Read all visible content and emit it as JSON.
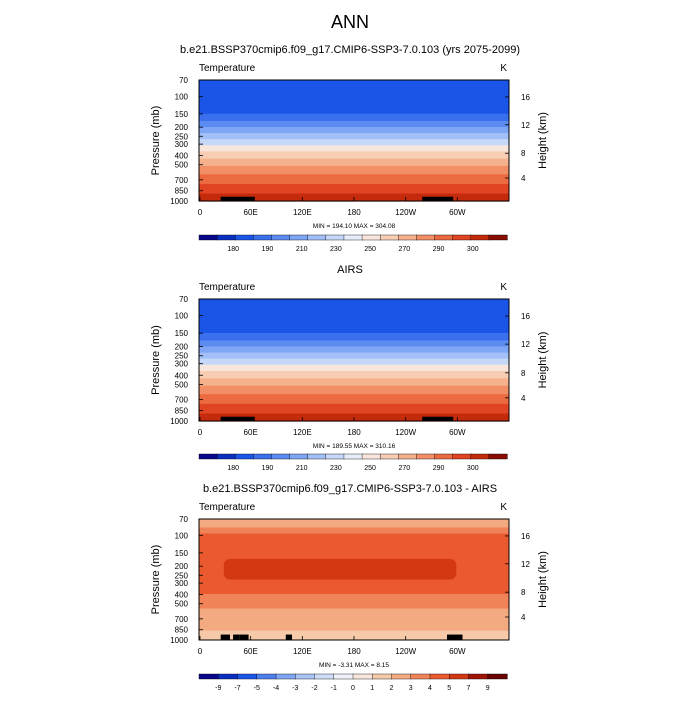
{
  "page_title": "ANN",
  "chart_data": [
    {
      "type": "heatmap",
      "title": "b.e21.BSSP370cmip6.f09_g17.CMIP6-SSP3-7.0.103 (yrs 2075-2099)",
      "left_label": "Temperature",
      "units": "K",
      "ylabel": "Pressure (mb)",
      "y2label": "Height (km)",
      "xticks": [
        "0",
        "60E",
        "120E",
        "180",
        "120W",
        "60W"
      ],
      "yticks": [
        "70",
        "100",
        "150",
        "200",
        "250",
        "300",
        "400",
        "500",
        "700",
        "850",
        "1000"
      ],
      "y2ticks": [
        "16",
        "12",
        "8",
        "4"
      ],
      "minmax": "MIN = 194.10   MAX = 304.08",
      "colorbar": [
        "180",
        "190",
        "210",
        "230",
        "250",
        "270",
        "290",
        "300"
      ],
      "min": 194.1,
      "max": 304.08
    },
    {
      "type": "heatmap",
      "title": "AIRS",
      "left_label": "Temperature",
      "units": "K",
      "ylabel": "Pressure (mb)",
      "y2label": "Height (km)",
      "xticks": [
        "0",
        "60E",
        "120E",
        "180",
        "120W",
        "60W"
      ],
      "yticks": [
        "70",
        "100",
        "150",
        "200",
        "250",
        "300",
        "400",
        "500",
        "700",
        "850",
        "1000"
      ],
      "y2ticks": [
        "16",
        "12",
        "8",
        "4"
      ],
      "minmax": "MIN = 189.55   MAX = 310.16",
      "colorbar": [
        "180",
        "190",
        "210",
        "230",
        "250",
        "270",
        "290",
        "300"
      ],
      "min": 189.55,
      "max": 310.16
    },
    {
      "type": "heatmap",
      "title": "b.e21.BSSP370cmip6.f09_g17.CMIP6-SSP3-7.0.103 - AIRS",
      "left_label": "Temperature",
      "units": "K",
      "ylabel": "Pressure (mb)",
      "y2label": "Height (km)",
      "xticks": [
        "0",
        "60E",
        "120E",
        "180",
        "120W",
        "60W"
      ],
      "yticks": [
        "70",
        "100",
        "150",
        "200",
        "250",
        "300",
        "400",
        "500",
        "700",
        "850",
        "1000"
      ],
      "y2ticks": [
        "16",
        "12",
        "8",
        "4"
      ],
      "minmax": "MIN =  -3.31   MAX =   8.15",
      "colorbar": [
        "-9",
        "-7",
        "-5",
        "-4",
        "-3",
        "-2",
        "-1",
        "0",
        "1",
        "2",
        "3",
        "4",
        "5",
        "7",
        "9"
      ],
      "min": -3.31,
      "max": 8.15
    }
  ],
  "colors": {
    "temperature_scale": [
      "#08088a",
      "#0a2fc0",
      "#1a55e8",
      "#3a70ee",
      "#5c8cf2",
      "#7ea6f5",
      "#a2c0f7",
      "#c6d8f8",
      "#e6eef8",
      "#f8e6dc",
      "#f7cdb4",
      "#f5b08c",
      "#f28f66",
      "#ec6a40",
      "#e04422",
      "#c42a0c",
      "#8a0d04"
    ],
    "difference_scale": [
      "#08088a",
      "#0a2fc0",
      "#1a55e8",
      "#4d80ee",
      "#7ea6f5",
      "#a8c4f7",
      "#cfdcf8",
      "#eef2f8",
      "#f8e6dc",
      "#f6caa8",
      "#f4aa80",
      "#f08458",
      "#ea5a2e",
      "#d43812",
      "#a01406",
      "#6a0402"
    ]
  }
}
